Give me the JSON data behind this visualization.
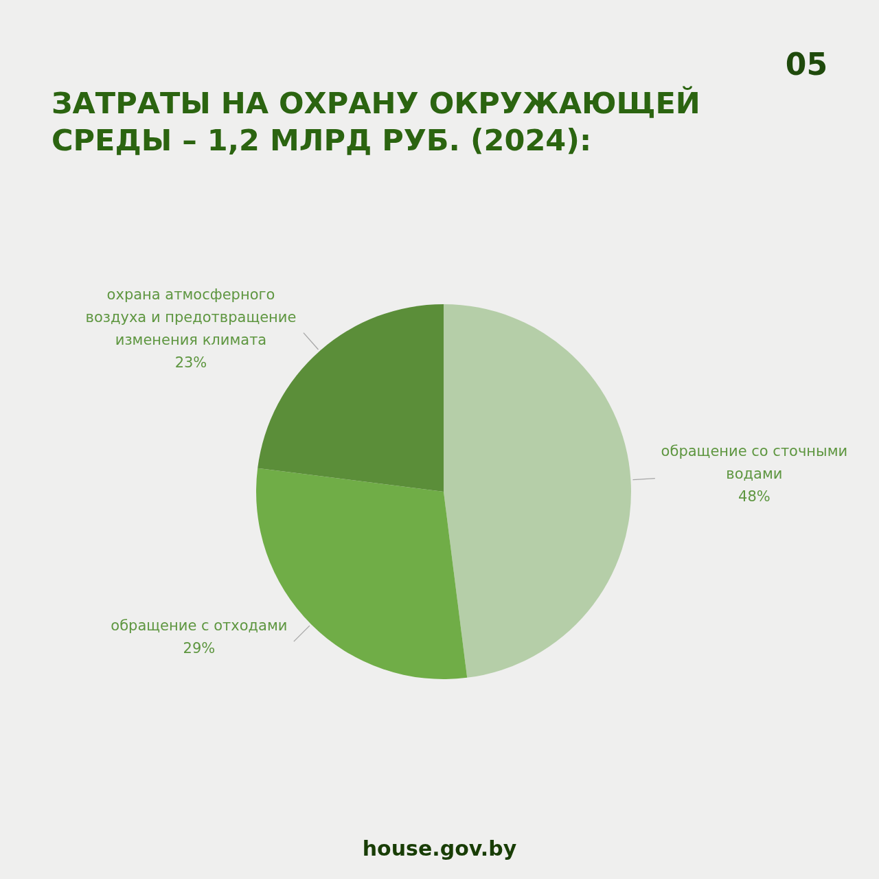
{
  "chart_data": {
    "type": "pie",
    "title": "ЗАТРАТЫ НА ОХРАНУ ОКРУЖАЮЩЕЙ СРЕДЫ – 1,2 МЛРД РУБ. (2024):",
    "categories": [
      "обращение со сточными водами",
      "обращение с отходами",
      "охрана атмосферного воздуха и предотвращение изменения климата"
    ],
    "values": [
      48,
      29,
      23
    ],
    "value_labels": [
      "48%",
      "29%",
      "23%"
    ],
    "colors": [
      "#b5cea8",
      "#70ad47",
      "#5b8e39"
    ],
    "annotations": [
      "05",
      "house.gov.by"
    ]
  }
}
